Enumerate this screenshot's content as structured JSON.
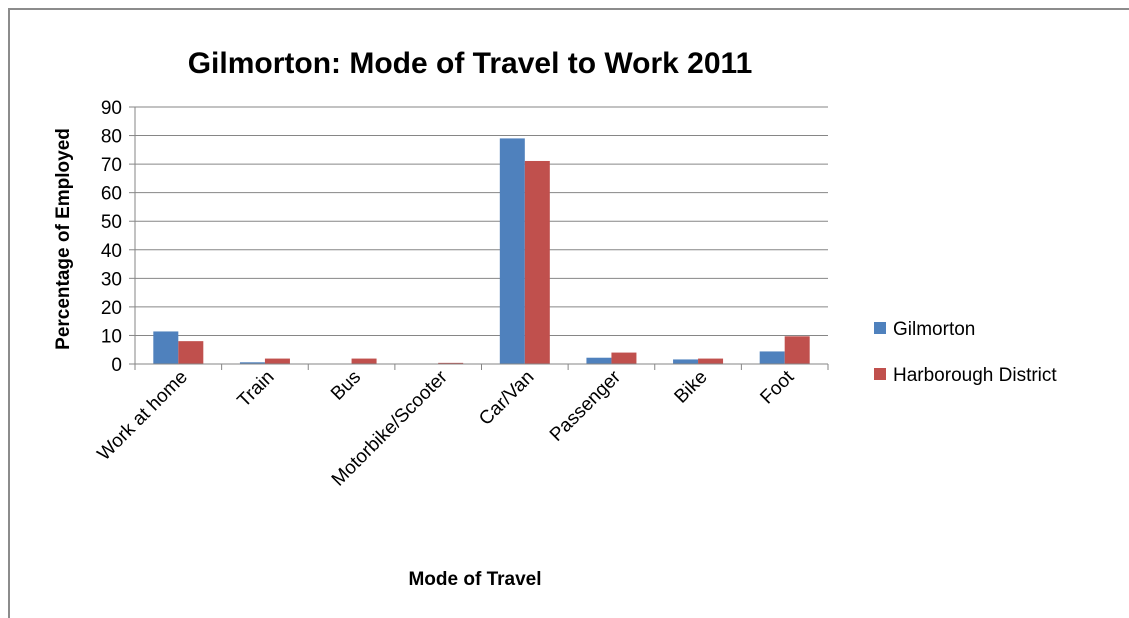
{
  "chart_data": {
    "type": "bar",
    "title": "Gilmorton: Mode of Travel to Work 2011",
    "xlabel": "Mode of Travel",
    "ylabel": "Percentage of Employed",
    "categories": [
      "Work at home",
      "Train",
      "Bus",
      "Motorbike/Scooter",
      "Car/Van",
      "Passenger",
      "Bike",
      "Foot"
    ],
    "series": [
      {
        "name": "Gilmorton",
        "color": "#4f81bd",
        "values": [
          11.4,
          0.6,
          0.0,
          0.0,
          79.0,
          2.2,
          1.6,
          4.4
        ]
      },
      {
        "name": "Harborough District",
        "color": "#c0504d",
        "values": [
          8.0,
          1.9,
          1.9,
          0.4,
          71.1,
          4.0,
          1.9,
          9.7
        ]
      }
    ],
    "ylim": [
      0,
      90
    ],
    "yticks": [
      0,
      10,
      20,
      30,
      40,
      50,
      60,
      70,
      80,
      90
    ],
    "grid": true,
    "legend_position": "right"
  }
}
